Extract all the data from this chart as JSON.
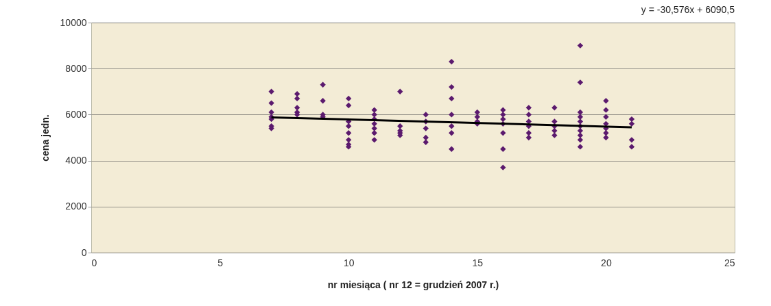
{
  "chart_data": {
    "type": "scatter",
    "xlabel": "nr miesiąca ( nr 12 = grudzień 2007 r.)",
    "ylabel": "cena jedn.",
    "annotations": [
      "y = -30,576x + 6090,5"
    ],
    "xlim": [
      0,
      25
    ],
    "xticks": [
      0,
      5,
      10,
      15,
      20,
      25
    ],
    "ylim": [
      0,
      10000
    ],
    "yticks": [
      0,
      2000,
      4000,
      6000,
      8000,
      10000
    ],
    "grid": "y",
    "series": [
      {
        "color": "#5b1a6e",
        "marker": "diamond",
        "x": [
          7,
          7,
          7,
          7,
          7,
          7,
          7,
          8,
          8,
          8,
          8,
          8,
          9,
          9,
          9,
          9,
          10,
          10,
          10,
          10,
          10,
          10,
          10,
          10,
          11,
          11,
          11,
          11,
          11,
          11,
          11,
          12,
          12,
          12,
          12,
          12,
          13,
          13,
          13,
          13,
          13,
          14,
          14,
          14,
          14,
          14,
          14,
          14,
          15,
          15,
          15,
          15,
          16,
          16,
          16,
          16,
          16,
          16,
          16,
          17,
          17,
          17,
          17,
          17,
          17,
          18,
          18,
          18,
          18,
          18,
          19,
          19,
          19,
          19,
          19,
          19,
          19,
          19,
          19,
          19,
          20,
          20,
          20,
          20,
          20,
          20,
          20,
          21,
          21,
          21,
          21
        ],
        "values": [
          7000,
          6500,
          6100,
          5900,
          5800,
          5500,
          5400,
          6900,
          6700,
          6300,
          6100,
          6000,
          7300,
          6600,
          6000,
          5900,
          6700,
          6400,
          5700,
          5500,
          5200,
          4900,
          4700,
          4600,
          6200,
          6000,
          5800,
          5600,
          5400,
          5200,
          4900,
          7000,
          5500,
          5300,
          5200,
          5100,
          6000,
          5700,
          5400,
          5000,
          4800,
          8300,
          7200,
          6700,
          6000,
          5500,
          5200,
          4500,
          6100,
          5900,
          5700,
          5600,
          6200,
          6000,
          5800,
          5600,
          5200,
          4500,
          3700,
          6300,
          6000,
          5700,
          5500,
          5200,
          5000,
          6300,
          5700,
          5500,
          5300,
          5100,
          9000,
          7400,
          6100,
          5900,
          5700,
          5500,
          5300,
          5100,
          4900,
          4600,
          6600,
          6200,
          5900,
          5600,
          5400,
          5200,
          5000,
          5800,
          5600,
          4900,
          4600
        ]
      },
      {
        "type": "line",
        "color": "#000000",
        "x": [
          7,
          21
        ],
        "values": [
          5880,
          5450
        ]
      }
    ]
  }
}
